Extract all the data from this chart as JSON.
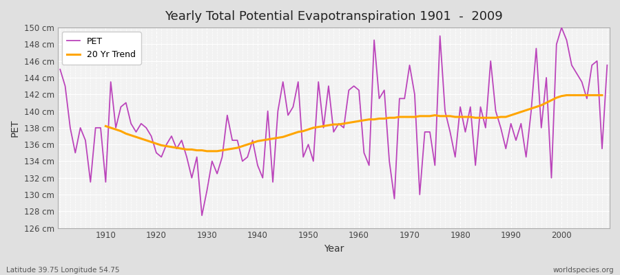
{
  "title": "Yearly Total Potential Evapotranspiration 1901  -  2009",
  "xlabel": "Year",
  "ylabel": "PET",
  "subtitle_left": "Latitude 39.75 Longitude 54.75",
  "subtitle_right": "worldspecies.org",
  "pet_color": "#bb44bb",
  "trend_color": "#FFA500",
  "background_color": "#e0e0e0",
  "plot_bg_color": "#f2f2f2",
  "grid_color": "#ffffff",
  "ylim": [
    126,
    150
  ],
  "ytick_step": 2,
  "years": [
    1901,
    1902,
    1903,
    1904,
    1905,
    1906,
    1907,
    1908,
    1909,
    1910,
    1911,
    1912,
    1913,
    1914,
    1915,
    1916,
    1917,
    1918,
    1919,
    1920,
    1921,
    1922,
    1923,
    1924,
    1925,
    1926,
    1927,
    1928,
    1929,
    1930,
    1931,
    1932,
    1933,
    1934,
    1935,
    1936,
    1937,
    1938,
    1939,
    1940,
    1941,
    1942,
    1943,
    1944,
    1945,
    1946,
    1947,
    1948,
    1949,
    1950,
    1951,
    1952,
    1953,
    1954,
    1955,
    1956,
    1957,
    1958,
    1959,
    1960,
    1961,
    1962,
    1963,
    1964,
    1965,
    1966,
    1967,
    1968,
    1969,
    1970,
    1971,
    1972,
    1973,
    1974,
    1975,
    1976,
    1977,
    1978,
    1979,
    1980,
    1981,
    1982,
    1983,
    1984,
    1985,
    1986,
    1987,
    1988,
    1989,
    1990,
    1991,
    1992,
    1993,
    1994,
    1995,
    1996,
    1997,
    1998,
    1999,
    2000,
    2001,
    2002,
    2003,
    2004,
    2005,
    2006,
    2007,
    2008,
    2009
  ],
  "pet_values": [
    145.0,
    143.0,
    138.0,
    135.0,
    138.0,
    136.5,
    131.5,
    138.0,
    138.0,
    131.5,
    143.5,
    138.0,
    140.5,
    141.0,
    138.5,
    137.5,
    138.5,
    138.0,
    137.0,
    135.0,
    134.5,
    136.0,
    137.0,
    135.5,
    136.5,
    134.5,
    132.0,
    134.5,
    127.5,
    130.5,
    134.0,
    132.5,
    134.5,
    139.5,
    136.5,
    136.5,
    134.0,
    134.5,
    136.5,
    133.5,
    132.0,
    140.0,
    131.5,
    140.0,
    143.5,
    139.5,
    140.5,
    143.5,
    134.5,
    136.0,
    134.0,
    143.5,
    138.0,
    143.0,
    137.5,
    138.5,
    138.0,
    142.5,
    143.0,
    142.5,
    135.0,
    133.5,
    148.5,
    141.5,
    142.5,
    134.0,
    129.5,
    141.5,
    141.5,
    145.5,
    142.0,
    130.0,
    137.5,
    137.5,
    133.5,
    149.0,
    140.0,
    137.5,
    134.5,
    140.5,
    137.5,
    140.5,
    133.5,
    140.5,
    138.0,
    146.0,
    140.0,
    138.0,
    135.5,
    138.5,
    136.5,
    138.5,
    134.5,
    140.0,
    147.5,
    138.0,
    144.0,
    132.0,
    148.0,
    150.0,
    148.5,
    145.5,
    144.5,
    143.5,
    141.5,
    145.5,
    146.0,
    135.5,
    145.5
  ],
  "trend_years": [
    1910,
    1911,
    1912,
    1913,
    1914,
    1915,
    1916,
    1917,
    1918,
    1919,
    1920,
    1921,
    1922,
    1923,
    1924,
    1925,
    1926,
    1927,
    1928,
    1929,
    1930,
    1931,
    1932,
    1933,
    1934,
    1935,
    1936,
    1937,
    1938,
    1939,
    1940,
    1941,
    1942,
    1943,
    1944,
    1945,
    1946,
    1947,
    1948,
    1949,
    1950,
    1951,
    1952,
    1953,
    1954,
    1955,
    1956,
    1957,
    1958,
    1959,
    1960,
    1961,
    1962,
    1963,
    1964,
    1965,
    1966,
    1967,
    1968,
    1969,
    1970,
    1971,
    1972,
    1973,
    1974,
    1975,
    1976,
    1977,
    1978,
    1979,
    1980,
    1981,
    1982,
    1983,
    1984,
    1985,
    1986,
    1987,
    1988,
    1989,
    1990,
    1991,
    1992,
    1993,
    1994,
    1995,
    1996,
    1997,
    1998,
    1999,
    2000,
    2001,
    2002,
    2003,
    2004,
    2005,
    2006,
    2007,
    2008
  ],
  "trend_values": [
    138.2,
    138.0,
    137.8,
    137.6,
    137.3,
    137.1,
    136.9,
    136.7,
    136.5,
    136.3,
    136.1,
    135.9,
    135.8,
    135.7,
    135.6,
    135.5,
    135.4,
    135.4,
    135.3,
    135.3,
    135.2,
    135.2,
    135.2,
    135.3,
    135.4,
    135.5,
    135.6,
    135.8,
    136.0,
    136.2,
    136.4,
    136.5,
    136.6,
    136.7,
    136.8,
    136.9,
    137.1,
    137.3,
    137.5,
    137.6,
    137.8,
    138.0,
    138.1,
    138.2,
    138.3,
    138.4,
    138.4,
    138.5,
    138.6,
    138.7,
    138.8,
    138.9,
    139.0,
    139.0,
    139.1,
    139.1,
    139.2,
    139.2,
    139.3,
    139.3,
    139.3,
    139.3,
    139.4,
    139.4,
    139.4,
    139.5,
    139.4,
    139.4,
    139.4,
    139.3,
    139.3,
    139.3,
    139.3,
    139.2,
    139.2,
    139.2,
    139.2,
    139.2,
    139.3,
    139.3,
    139.5,
    139.7,
    139.9,
    140.1,
    140.3,
    140.5,
    140.7,
    141.0,
    141.3,
    141.6,
    141.8,
    141.9,
    141.9,
    141.9,
    141.9,
    141.9,
    141.9,
    141.9,
    141.9
  ]
}
